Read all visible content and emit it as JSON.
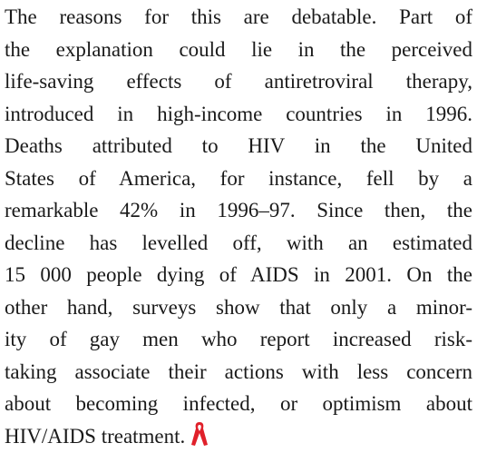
{
  "paragraph": {
    "lines": [
      "The reasons for this are debatable. Part of",
      "the explanation could lie in the perceived",
      "life-saving effects of antiretroviral therapy,",
      "introduced in high-income countries in 1996.",
      "Deaths attributed to HIV in the United",
      "States of America, for instance, fell by a",
      "remarkable 42% in 1996–97. Since then, the",
      "decline has levelled off, with an estimated",
      "15 000 people dying of AIDS in 2001. On the",
      "other hand, surveys show that only a minor-",
      "ity of gay men who report increased risk-",
      "taking associate their actions with less concern",
      "about becoming infected, or optimism about",
      "HIV/AIDS treatment."
    ]
  }
}
